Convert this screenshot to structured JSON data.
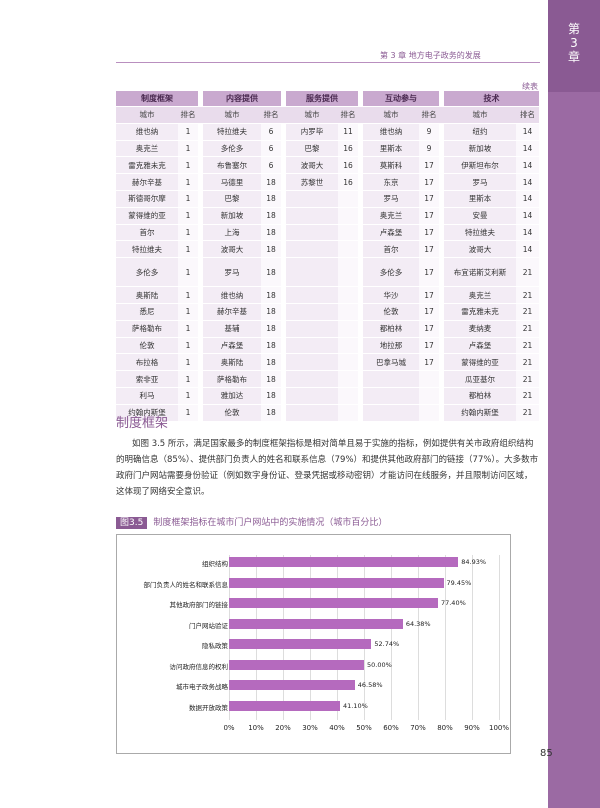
{
  "side_tab": {
    "chapter": "第\n3\n章"
  },
  "header": {
    "text": "第 3 章  地方电子政务的发展"
  },
  "continued": "续表",
  "table": {
    "groups": [
      "制度框架",
      "内容提供",
      "服务提供",
      "互动参与",
      "技术"
    ],
    "sub_city": "城市",
    "sub_rank": "排名",
    "rows": [
      [
        "维也纳",
        "1",
        "特拉维夫",
        "6",
        "内罗毕",
        "11",
        "维也纳",
        "9",
        "纽约",
        "14"
      ],
      [
        "奥克兰",
        "1",
        "多伦多",
        "6",
        "巴黎",
        "16",
        "里斯本",
        "9",
        "新加坡",
        "14"
      ],
      [
        "雷克雅未克",
        "1",
        "布鲁塞尔",
        "6",
        "波哥大",
        "16",
        "莫斯科",
        "17",
        "伊斯坦布尔",
        "14"
      ],
      [
        "赫尔辛基",
        "1",
        "马德里",
        "18",
        "苏黎世",
        "16",
        "东京",
        "17",
        "罗马",
        "14"
      ],
      [
        "斯德哥尔摩",
        "1",
        "巴黎",
        "18",
        "",
        "",
        "罗马",
        "17",
        "里斯本",
        "14"
      ],
      [
        "蒙得维的亚",
        "1",
        "新加坡",
        "18",
        "",
        "",
        "奥克兰",
        "17",
        "安曼",
        "14"
      ],
      [
        "首尔",
        "1",
        "上海",
        "18",
        "",
        "",
        "卢森堡",
        "17",
        "特拉维夫",
        "14"
      ],
      [
        "特拉维夫",
        "1",
        "波哥大",
        "18",
        "",
        "",
        "首尔",
        "17",
        "波哥大",
        "14"
      ],
      [
        "多伦多",
        "1",
        "罗马",
        "18",
        "",
        "",
        "多伦多",
        "17",
        "布宜诺斯艾利斯",
        "21"
      ],
      [
        "奥斯陆",
        "1",
        "维也纳",
        "18",
        "",
        "",
        "华沙",
        "17",
        "奥克兰",
        "21"
      ],
      [
        "悉尼",
        "1",
        "赫尔辛基",
        "18",
        "",
        "",
        "伦敦",
        "17",
        "雷克雅未克",
        "21"
      ],
      [
        "萨格勒布",
        "1",
        "基辅",
        "18",
        "",
        "",
        "都柏林",
        "17",
        "麦纳麦",
        "21"
      ],
      [
        "伦敦",
        "1",
        "卢森堡",
        "18",
        "",
        "",
        "地拉那",
        "17",
        "卢森堡",
        "21"
      ],
      [
        "布拉格",
        "1",
        "奥斯陆",
        "18",
        "",
        "",
        "巴拿马城",
        "17",
        "蒙得维的亚",
        "21"
      ],
      [
        "索非亚",
        "1",
        "萨格勒布",
        "18",
        "",
        "",
        "",
        "",
        "瓜亚基尔",
        "21"
      ],
      [
        "利马",
        "1",
        "雅加达",
        "18",
        "",
        "",
        "",
        "",
        "都柏林",
        "21"
      ],
      [
        "约翰内斯堡",
        "1",
        "伦敦",
        "18",
        "",
        "",
        "",
        "",
        "约翰内斯堡",
        "21"
      ]
    ]
  },
  "section_title": "制度框架",
  "body": "如图 3.5 所示，满足国家最多的制度框架指标是相对简单且易于实施的指标，例如提供有关市政府组织结构的明确信息（85%）、提供部门负责人的姓名和联系信息（79%）和提供其他政府部门的链接（77%）。大多数市政府门户网站需要身份验证（例如数字身份证、登录凭据或移动密钥）才能访问在线服务，并且限制访问区域，这体现了网络安全意识。",
  "figure": {
    "number": "图3.5",
    "title": "制度框架指标在城市门户网站中的实施情况（城市百分比）"
  },
  "chart_data": {
    "type": "bar",
    "orientation": "horizontal",
    "categories": [
      "组织结构",
      "部门负责人的姓名和联系信息",
      "其他政府部门的链接",
      "门户网站验证",
      "隐私政策",
      "访问政府信息的权利",
      "城市电子政务战略",
      "数据开放政策"
    ],
    "values": [
      84.93,
      79.45,
      77.4,
      64.38,
      52.74,
      50.0,
      46.58,
      41.1
    ],
    "value_labels": [
      "84.93%",
      "79.45%",
      "77.40%",
      "64.38%",
      "52.74%",
      "50.00%",
      "46.58%",
      "41.10%"
    ],
    "xlim": [
      0,
      100
    ],
    "ticks": [
      "0%",
      "10%",
      "20%",
      "30%",
      "40%",
      "50%",
      "60%",
      "70%",
      "80%",
      "90%",
      "100%"
    ],
    "bar_color": "#b56abe"
  },
  "page_number": "85",
  "colors": {
    "accent": "#8a5a93",
    "header_fill": "#c9a9cf"
  }
}
